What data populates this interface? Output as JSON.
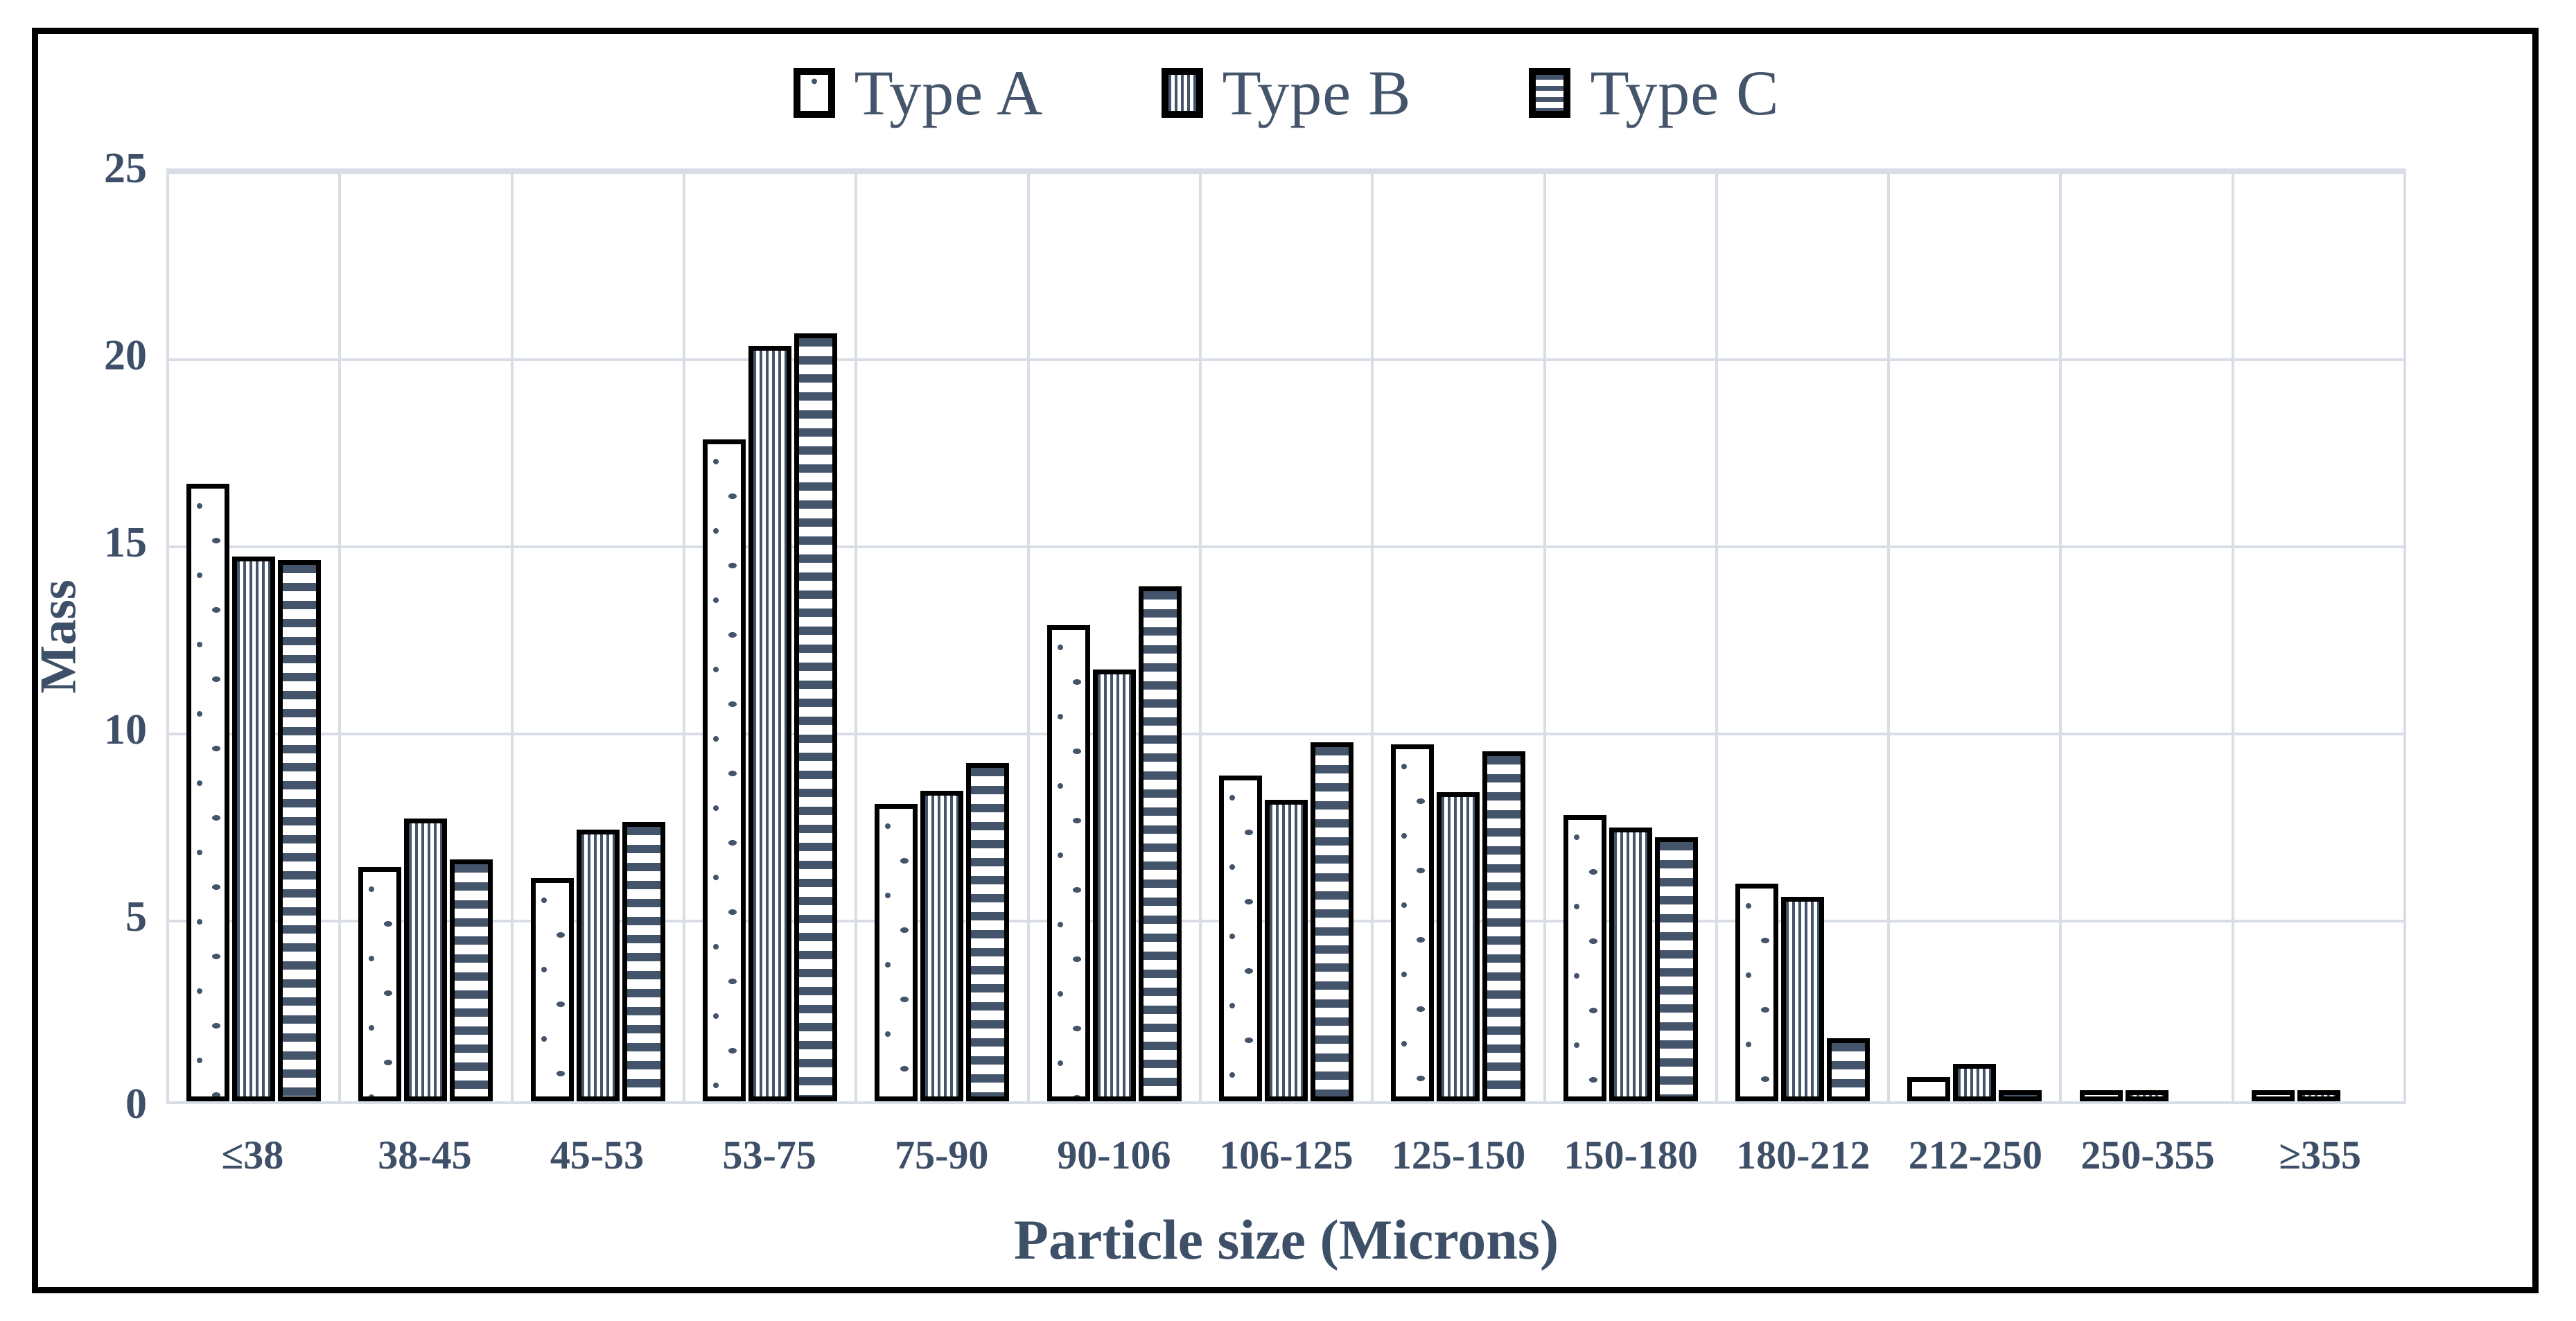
{
  "chart_data": {
    "type": "bar",
    "title": "",
    "xlabel": "Particle size (Microns)",
    "ylabel": "Mass",
    "ylim": [
      0,
      25
    ],
    "y_ticks": [
      0,
      5,
      10,
      15,
      20,
      25
    ],
    "grid": true,
    "legend_position": "top-center",
    "categories": [
      "≤38",
      "38-45",
      "45-53",
      "53-75",
      "75-90",
      "90-106",
      "106-125",
      "125-150",
      "150-180",
      "180-212",
      "212-250",
      "250-355",
      "≥355"
    ],
    "series": [
      {
        "name": "Type A",
        "pattern": "dots",
        "values": [
          16.6,
          6.3,
          6.0,
          17.8,
          8.0,
          12.8,
          8.75,
          9.6,
          7.7,
          5.85,
          0.65,
          0.1,
          0.1
        ]
      },
      {
        "name": "Type B",
        "pattern": "vstripes",
        "values": [
          14.65,
          7.6,
          7.3,
          20.3,
          8.35,
          11.6,
          8.1,
          8.3,
          7.35,
          5.5,
          1.0,
          0.1,
          0.1
        ]
      },
      {
        "name": "Type C",
        "pattern": "hstripes",
        "values": [
          14.55,
          6.5,
          7.5,
          20.65,
          9.1,
          13.85,
          9.65,
          9.4,
          7.1,
          1.7,
          0.1,
          0,
          0
        ]
      }
    ],
    "colors": {
      "pattern_fill": "#44546A",
      "text": "#3E4F68",
      "grid": "#D8DDE6",
      "bar_border": "#000000",
      "frame_border": "#000000",
      "background": "#FFFFFF"
    }
  }
}
